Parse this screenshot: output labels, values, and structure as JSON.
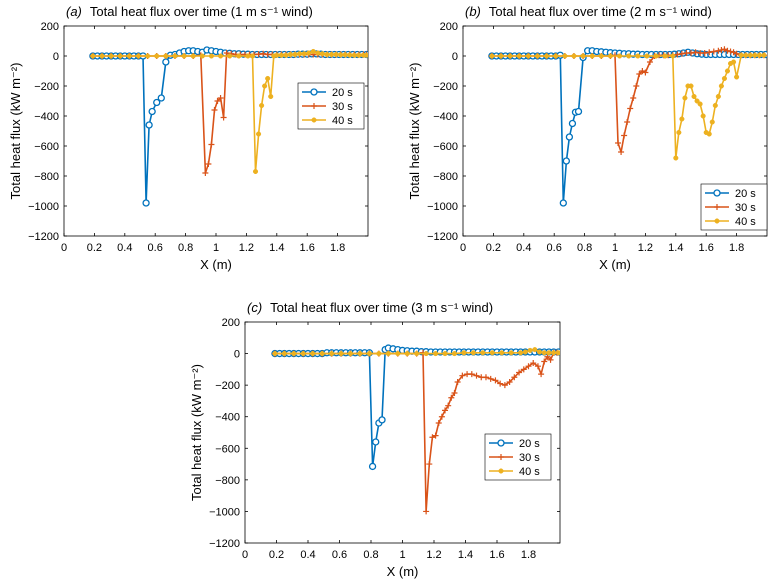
{
  "chart_data": [
    {
      "type": "line",
      "panel": "(a)",
      "title": "Total heat flux over time (1 m s⁻¹ wind)",
      "xlabel": "X (m)",
      "ylabel": "Total heat flux (kW m⁻²)",
      "xlim": [
        0,
        2
      ],
      "ylim": [
        -1200,
        200
      ],
      "xticks": [
        "0",
        "0.2",
        "0.4",
        "0.6",
        "0.8",
        "1",
        "1.2",
        "1.4",
        "1.6",
        "1.8"
      ],
      "yticks": [
        "200",
        "0",
        "-200",
        "-400",
        "-600",
        "-800",
        "-1000",
        "-1200"
      ],
      "legend_position": "right",
      "series": [
        {
          "name": "20 s",
          "color": "#0072BD",
          "marker": "circle",
          "x": [
            0.19,
            0.22,
            0.25,
            0.28,
            0.31,
            0.34,
            0.37,
            0.4,
            0.43,
            0.46,
            0.49,
            0.52,
            0.54,
            0.56,
            0.58,
            0.61,
            0.64,
            0.67,
            0.7,
            0.73,
            0.76,
            0.79,
            0.82,
            0.85,
            0.88,
            0.91,
            0.94,
            0.97,
            1.0,
            1.03,
            1.06,
            1.09,
            1.12,
            1.15,
            1.18,
            1.21,
            1.24,
            1.27,
            1.3,
            1.33,
            1.36,
            1.39,
            1.42,
            1.45,
            1.48,
            1.51,
            1.54,
            1.57,
            1.6,
            1.63,
            1.66,
            1.69,
            1.72,
            1.75,
            1.78,
            1.81,
            1.84,
            1.87,
            1.9,
            1.93,
            1.96,
            1.99
          ],
          "y": [
            0,
            0,
            0,
            0,
            0,
            0,
            0,
            0,
            0,
            0,
            0,
            0,
            -980,
            -460,
            -370,
            -310,
            -280,
            -40,
            5,
            10,
            20,
            30,
            35,
            35,
            30,
            25,
            40,
            35,
            30,
            25,
            20,
            18,
            15,
            15,
            12,
            12,
            10,
            10,
            10,
            10,
            10,
            10,
            10,
            10,
            10,
            10,
            12,
            12,
            12,
            14,
            14,
            12,
            10,
            10,
            10,
            10,
            10,
            10,
            10,
            10,
            10,
            10
          ]
        },
        {
          "name": "30 s",
          "color": "#D95319",
          "marker": "plus",
          "x": [
            0.19,
            0.25,
            0.31,
            0.37,
            0.43,
            0.49,
            0.55,
            0.61,
            0.67,
            0.73,
            0.79,
            0.85,
            0.9,
            0.93,
            0.95,
            0.97,
            0.99,
            1.01,
            1.03,
            1.05,
            1.07,
            1.1,
            1.13,
            1.16,
            1.19,
            1.22,
            1.25,
            1.28,
            1.31,
            1.34,
            1.37,
            1.4,
            1.43,
            1.46,
            1.49,
            1.52,
            1.55,
            1.58,
            1.61,
            1.64,
            1.67,
            1.7,
            1.73,
            1.76,
            1.79,
            1.82,
            1.85,
            1.88,
            1.91,
            1.94,
            1.97,
            1.99
          ],
          "y": [
            0,
            0,
            0,
            0,
            0,
            0,
            0,
            0,
            0,
            0,
            0,
            0,
            5,
            -780,
            -720,
            -590,
            -360,
            -300,
            -280,
            -410,
            20,
            15,
            10,
            10,
            10,
            10,
            10,
            12,
            15,
            10,
            10,
            10,
            10,
            10,
            10,
            10,
            10,
            10,
            10,
            10,
            10,
            10,
            10,
            10,
            10,
            10,
            10,
            10,
            10,
            10,
            10,
            10
          ]
        },
        {
          "name": "40 s",
          "color": "#EDB120",
          "marker": "dot",
          "x": [
            0.19,
            0.25,
            0.31,
            0.37,
            0.43,
            0.49,
            0.55,
            0.61,
            0.67,
            0.73,
            0.79,
            0.85,
            0.91,
            0.97,
            1.03,
            1.09,
            1.15,
            1.21,
            1.24,
            1.26,
            1.28,
            1.3,
            1.32,
            1.34,
            1.36,
            1.38,
            1.4,
            1.43,
            1.46,
            1.49,
            1.52,
            1.55,
            1.58,
            1.61,
            1.64,
            1.67,
            1.7,
            1.73,
            1.76,
            1.79,
            1.82,
            1.85,
            1.88,
            1.91,
            1.94,
            1.97,
            1.99
          ],
          "y": [
            0,
            0,
            0,
            0,
            0,
            0,
            0,
            0,
            0,
            0,
            0,
            0,
            0,
            0,
            0,
            0,
            0,
            0,
            0,
            -770,
            -520,
            -330,
            -200,
            -150,
            -270,
            0,
            5,
            5,
            5,
            10,
            10,
            15,
            15,
            20,
            30,
            20,
            15,
            10,
            10,
            10,
            8,
            8,
            6,
            5,
            5,
            5,
            5
          ]
        }
      ]
    },
    {
      "type": "line",
      "panel": "(b)",
      "title": "Total heat flux over time (2 m s⁻¹ wind)",
      "xlabel": "X (m)",
      "ylabel": "Total heat flux (kW m⁻²)",
      "xlim": [
        0,
        2
      ],
      "ylim": [
        -1200,
        200
      ],
      "xticks": [
        "0",
        "0.2",
        "0.4",
        "0.6",
        "0.8",
        "1",
        "1.2",
        "1.4",
        "1.6",
        "1.8"
      ],
      "yticks": [
        "200",
        "0",
        "-200",
        "-400",
        "-600",
        "-800",
        "-1000",
        "-1200"
      ],
      "legend_position": "lower-right",
      "series": [
        {
          "name": "20 s",
          "color": "#0072BD",
          "marker": "circle",
          "x": [
            0.19,
            0.22,
            0.25,
            0.28,
            0.31,
            0.34,
            0.37,
            0.4,
            0.43,
            0.46,
            0.49,
            0.52,
            0.55,
            0.58,
            0.61,
            0.64,
            0.66,
            0.68,
            0.7,
            0.72,
            0.74,
            0.76,
            0.79,
            0.82,
            0.85,
            0.88,
            0.91,
            0.94,
            0.97,
            1.0,
            1.03,
            1.06,
            1.09,
            1.12,
            1.15,
            1.18,
            1.21,
            1.24,
            1.27,
            1.3,
            1.33,
            1.36,
            1.39,
            1.42,
            1.45,
            1.48,
            1.51,
            1.54,
            1.57,
            1.6,
            1.63,
            1.66,
            1.69,
            1.72,
            1.75,
            1.78,
            1.81,
            1.84,
            1.87,
            1.9,
            1.93,
            1.96,
            1.99
          ],
          "y": [
            0,
            0,
            0,
            0,
            0,
            0,
            0,
            0,
            0,
            0,
            0,
            0,
            0,
            0,
            0,
            5,
            -980,
            -700,
            -540,
            -450,
            -375,
            -370,
            -10,
            35,
            35,
            30,
            28,
            25,
            22,
            20,
            18,
            15,
            15,
            12,
            12,
            10,
            10,
            10,
            10,
            10,
            10,
            10,
            12,
            15,
            20,
            25,
            20,
            15,
            12,
            10,
            10,
            10,
            10,
            10,
            10,
            10,
            10,
            10,
            10,
            10,
            10,
            10,
            10
          ]
        },
        {
          "name": "30 s",
          "color": "#D95319",
          "marker": "plus",
          "x": [
            0.19,
            0.25,
            0.31,
            0.37,
            0.43,
            0.49,
            0.55,
            0.61,
            0.67,
            0.73,
            0.79,
            0.85,
            0.91,
            0.97,
            1.0,
            1.02,
            1.04,
            1.06,
            1.08,
            1.1,
            1.12,
            1.14,
            1.16,
            1.18,
            1.2,
            1.23,
            1.26,
            1.29,
            1.32,
            1.35,
            1.38,
            1.41,
            1.44,
            1.47,
            1.5,
            1.53,
            1.56,
            1.59,
            1.62,
            1.65,
            1.68,
            1.7,
            1.72,
            1.74,
            1.76,
            1.78,
            1.8,
            1.83,
            1.86,
            1.89,
            1.92,
            1.95,
            1.98
          ],
          "y": [
            0,
            0,
            0,
            0,
            0,
            0,
            0,
            0,
            0,
            0,
            0,
            0,
            0,
            0,
            5,
            -580,
            -640,
            -530,
            -440,
            -350,
            -280,
            -200,
            -120,
            -100,
            -110,
            -40,
            0,
            5,
            5,
            5,
            5,
            10,
            15,
            20,
            20,
            25,
            20,
            20,
            25,
            30,
            35,
            40,
            45,
            35,
            30,
            25,
            15,
            5,
            5,
            5,
            5,
            5,
            5
          ]
        },
        {
          "name": "40 s",
          "color": "#EDB120",
          "marker": "dot",
          "x": [
            0.19,
            0.25,
            0.31,
            0.37,
            0.43,
            0.49,
            0.55,
            0.61,
            0.67,
            0.73,
            0.79,
            0.85,
            0.91,
            0.97,
            1.03,
            1.09,
            1.15,
            1.21,
            1.27,
            1.33,
            1.38,
            1.4,
            1.42,
            1.44,
            1.46,
            1.48,
            1.5,
            1.52,
            1.54,
            1.56,
            1.58,
            1.6,
            1.62,
            1.64,
            1.66,
            1.68,
            1.7,
            1.72,
            1.74,
            1.76,
            1.78,
            1.8,
            1.83,
            1.86,
            1.89,
            1.92,
            1.95,
            1.98
          ],
          "y": [
            0,
            0,
            0,
            0,
            0,
            0,
            0,
            0,
            0,
            0,
            0,
            0,
            0,
            0,
            0,
            0,
            0,
            0,
            0,
            0,
            0,
            -680,
            -510,
            -420,
            -280,
            -200,
            -200,
            -270,
            -300,
            -320,
            -400,
            -510,
            -520,
            -440,
            -330,
            -270,
            -200,
            -150,
            -100,
            -50,
            -40,
            -140,
            5,
            5,
            5,
            5,
            5,
            5
          ]
        }
      ]
    },
    {
      "type": "line",
      "panel": "(c)",
      "title": "Total heat flux over time (3 m s⁻¹ wind)",
      "xlabel": "X (m)",
      "ylabel": "Total heat flux (kW m⁻²)",
      "xlim": [
        0,
        2
      ],
      "ylim": [
        -1200,
        200
      ],
      "xticks": [
        "0",
        "0.2",
        "0.4",
        "0.6",
        "0.8",
        "1",
        "1.2",
        "1.4",
        "1.6",
        "1.8"
      ],
      "yticks": [
        "200",
        "0",
        "-200",
        "-400",
        "-600",
        "-800",
        "-1000",
        "-1200"
      ],
      "legend_position": "lower-right",
      "series": [
        {
          "name": "20 s",
          "color": "#0072BD",
          "marker": "circle",
          "x": [
            0.19,
            0.22,
            0.25,
            0.28,
            0.31,
            0.34,
            0.37,
            0.4,
            0.43,
            0.46,
            0.49,
            0.52,
            0.55,
            0.58,
            0.61,
            0.64,
            0.67,
            0.7,
            0.73,
            0.76,
            0.79,
            0.81,
            0.83,
            0.85,
            0.87,
            0.89,
            0.91,
            0.94,
            0.97,
            1.0,
            1.03,
            1.06,
            1.09,
            1.12,
            1.15,
            1.18,
            1.21,
            1.24,
            1.27,
            1.3,
            1.33,
            1.36,
            1.39,
            1.42,
            1.45,
            1.48,
            1.51,
            1.54,
            1.57,
            1.6,
            1.63,
            1.66,
            1.69,
            1.72,
            1.75,
            1.78,
            1.81,
            1.84,
            1.87,
            1.9,
            1.93,
            1.96,
            1.99
          ],
          "y": [
            0,
            0,
            0,
            0,
            0,
            0,
            0,
            0,
            0,
            0,
            0,
            5,
            5,
            5,
            5,
            5,
            5,
            5,
            5,
            5,
            5,
            -715,
            -560,
            -440,
            -420,
            25,
            35,
            30,
            25,
            20,
            18,
            15,
            15,
            12,
            12,
            10,
            10,
            10,
            10,
            10,
            10,
            10,
            10,
            10,
            10,
            10,
            10,
            10,
            10,
            10,
            10,
            10,
            10,
            10,
            10,
            10,
            10,
            10,
            10,
            10,
            10,
            10,
            10
          ]
        },
        {
          "name": "30 s",
          "color": "#D95319",
          "marker": "plus",
          "x": [
            0.19,
            0.25,
            0.31,
            0.37,
            0.43,
            0.49,
            0.55,
            0.61,
            0.67,
            0.73,
            0.79,
            0.85,
            0.91,
            0.97,
            1.03,
            1.09,
            1.13,
            1.15,
            1.17,
            1.19,
            1.21,
            1.23,
            1.25,
            1.27,
            1.29,
            1.31,
            1.33,
            1.35,
            1.38,
            1.41,
            1.44,
            1.47,
            1.5,
            1.53,
            1.56,
            1.59,
            1.62,
            1.65,
            1.68,
            1.71,
            1.74,
            1.77,
            1.8,
            1.83,
            1.86,
            1.88,
            1.9,
            1.92,
            1.94,
            1.96,
            1.98
          ],
          "y": [
            0,
            0,
            0,
            0,
            0,
            0,
            0,
            0,
            0,
            0,
            0,
            0,
            0,
            0,
            0,
            0,
            5,
            -1000,
            -700,
            -530,
            -520,
            -440,
            -400,
            -360,
            -330,
            -280,
            -250,
            -180,
            -140,
            -130,
            -130,
            -140,
            -150,
            -150,
            -160,
            -170,
            -190,
            -200,
            -180,
            -150,
            -120,
            -100,
            -80,
            -60,
            -80,
            -130,
            -50,
            -20,
            -40,
            5,
            5
          ]
        },
        {
          "name": "40 s",
          "color": "#EDB120",
          "marker": "dot",
          "x": [
            0.19,
            0.25,
            0.31,
            0.37,
            0.43,
            0.49,
            0.55,
            0.61,
            0.67,
            0.73,
            0.79,
            0.85,
            0.91,
            0.97,
            1.03,
            1.09,
            1.15,
            1.21,
            1.27,
            1.33,
            1.39,
            1.45,
            1.51,
            1.57,
            1.63,
            1.69,
            1.75,
            1.78,
            1.81,
            1.84,
            1.87,
            1.9,
            1.93,
            1.96,
            1.99
          ],
          "y": [
            0,
            0,
            0,
            0,
            0,
            0,
            0,
            0,
            0,
            0,
            0,
            0,
            0,
            0,
            0,
            0,
            0,
            0,
            0,
            0,
            5,
            5,
            5,
            5,
            5,
            5,
            5,
            10,
            20,
            25,
            10,
            5,
            5,
            5,
            5
          ]
        }
      ]
    }
  ]
}
